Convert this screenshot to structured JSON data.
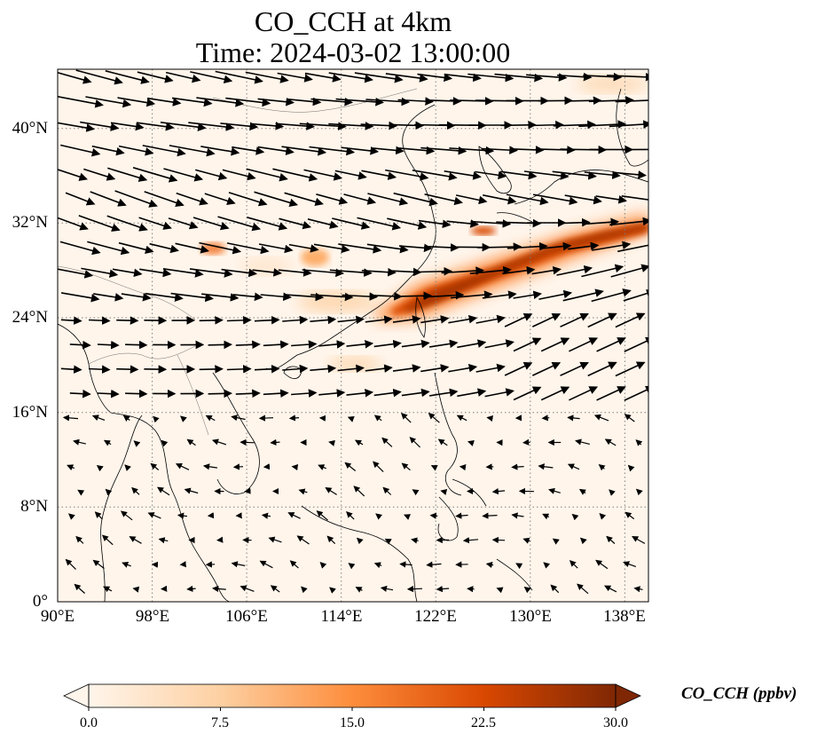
{
  "title": {
    "line1": "CO_CCH at 4km",
    "line2": "Time: 2024-03-02 13:00:00"
  },
  "map": {
    "variable": "CO_CCH",
    "lon_range": [
      90,
      140
    ],
    "lat_range": [
      0,
      45
    ],
    "lon_ticks": [
      "90°E",
      "98°E",
      "106°E",
      "114°E",
      "122°E",
      "130°E",
      "138°E"
    ],
    "lat_ticks": [
      "0°",
      "8°N",
      "16°N",
      "24°N",
      "32°N",
      "40°N"
    ],
    "gridlines": "dotted",
    "overlay": "wind vectors",
    "colormap": "white-orange-red"
  },
  "colorbar": {
    "label": "CO_CCH (ppbv)",
    "ticks": [
      "0.0",
      "7.5",
      "15.0",
      "22.5",
      "30.0"
    ],
    "range": [
      0,
      30
    ],
    "extend": "both",
    "colors": [
      "#fff5eb",
      "#fdd0a2",
      "#fd8d3c",
      "#d94801",
      "#7f2704"
    ]
  }
}
